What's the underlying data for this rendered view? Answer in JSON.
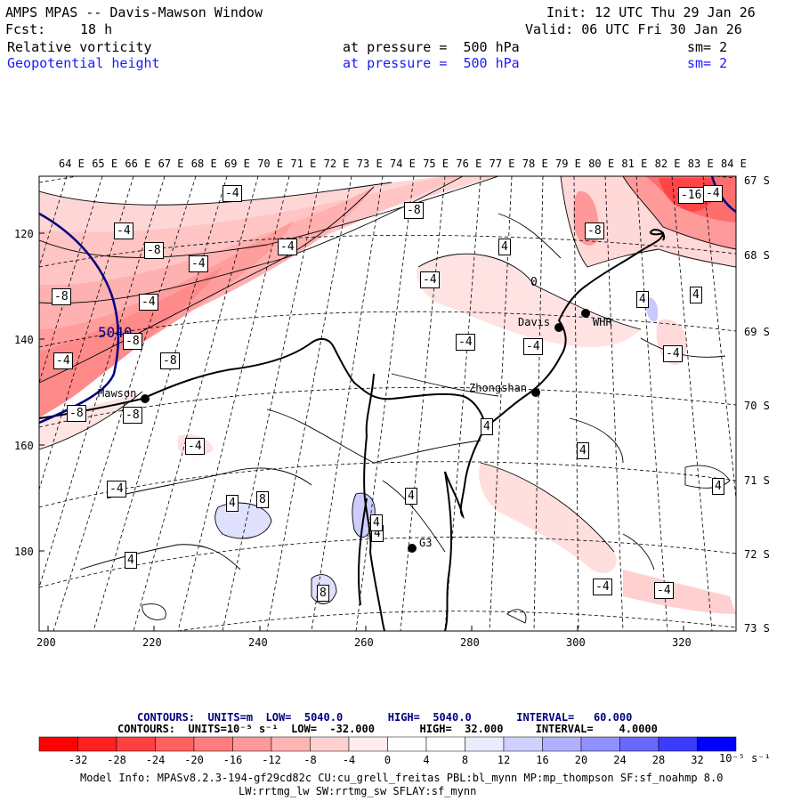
{
  "header": {
    "title": "AMPS MPAS -- Davis-Mawson Window",
    "init": "Init: 12 UTC Thu 29 Jan 26",
    "fcst_label": "Fcst:",
    "fcst_value": "18 h",
    "valid": "Valid: 06 UTC Fri 30 Jan 26",
    "fields": [
      {
        "name": "Relative vorticity",
        "pressure": "at pressure =  500 hPa",
        "sm": "sm= 2",
        "color": "#000000"
      },
      {
        "name": "Geopotential height",
        "pressure": "at pressure =  500 hPa",
        "sm": "sm= 2",
        "color": "#1a1aff"
      }
    ]
  },
  "map": {
    "lon_labels": [
      "64 E",
      "65 E",
      "66 E",
      "67 E",
      "68 E",
      "69 E",
      "70 E",
      "71 E",
      "72 E",
      "73 E",
      "74 E",
      "75 E",
      "76 E",
      "77 E",
      "78 E",
      "79 E",
      "80 E",
      "81 E",
      "82 E",
      "83 E",
      "84 E"
    ],
    "lat_labels": [
      "67 S",
      "68 S",
      "69 S",
      "70 S",
      "71 S",
      "72 S",
      "73 S"
    ],
    "x_ticks": [
      "200",
      "220",
      "240",
      "260",
      "280",
      "300",
      "320"
    ],
    "y_ticks": [
      "120",
      "140",
      "160",
      "180"
    ],
    "stations": [
      "Mawson",
      "Davis",
      "WHR",
      "Zhongshan",
      "G3"
    ],
    "height_contour_label": "5040",
    "vorticity_labels": [
      "-4",
      "-8",
      "-16",
      "-4",
      "-8",
      "-4",
      "-4",
      "-8",
      "-4",
      "-8",
      "-8",
      "-4",
      "-8",
      "-8",
      "-4",
      "-4",
      "-4",
      "-8",
      "-4",
      "-4",
      "-4",
      "-4",
      "4",
      "4",
      "4",
      "4",
      "4",
      "4",
      "4",
      "4",
      "4",
      "8",
      "8",
      "4",
      "4",
      "-4",
      "-4",
      "0"
    ]
  },
  "legend": {
    "contours1": "CONTOURS:  UNITS=m  LOW=  5040.0       HIGH=  5040.0       INTERVAL=   60.000",
    "contours2": "CONTOURS:  UNITS=10⁻⁵ s⁻¹  LOW=  -32.000       HIGH=  32.000     INTERVAL=    4.0000",
    "colorbar_ticks": [
      "-32",
      "-28",
      "-24",
      "-20",
      "-16",
      "-12",
      "-8",
      "-4",
      "0",
      "4",
      "8",
      "12",
      "16",
      "20",
      "24",
      "28",
      "32"
    ],
    "units": "10⁻⁵ s⁻¹",
    "colors": [
      "#ff0000",
      "#ff2929",
      "#ff4d4d",
      "#ff7070",
      "#ff9090",
      "#ffb0b0",
      "#ffd0d0",
      "#ffeaea",
      "#ffffff",
      "#ffffff",
      "#e8e8ff",
      "#c8c8ff",
      "#a8a8ff",
      "#8888ff",
      "#6060ff",
      "#3030ff",
      "#0000ff"
    ]
  },
  "footer": {
    "line1": "Model Info: MPASv8.2.3-194-gf29cd82c CU:cu_grell_freitas PBL:bl_mynn MP:mp_thompson SF:sf_noahmp 8.0",
    "line2": "LW:rrtmg_lw SW:rrtmg_sw SFLAY:sf_mynn"
  }
}
